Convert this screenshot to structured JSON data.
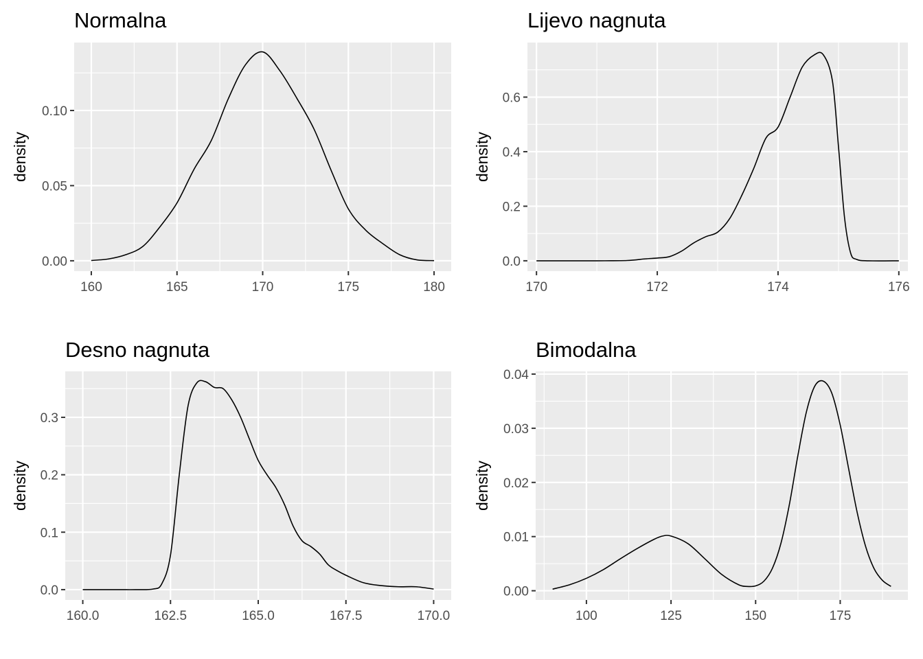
{
  "chart_data": [
    {
      "type": "line",
      "title": "Normalna",
      "xlabel": "",
      "ylabel": "density",
      "xlim": [
        159,
        181
      ],
      "ylim": [
        -0.0069,
        0.1452
      ],
      "xticks": [
        160,
        165,
        170,
        175,
        180
      ],
      "xtick_labels": [
        "160",
        "165",
        "170",
        "175",
        "180"
      ],
      "yticks": [
        0,
        0.05,
        0.1
      ],
      "ytick_labels": [
        "0.00",
        "0.05",
        "0.10"
      ],
      "grid": true,
      "series": [
        {
          "x": [
            160,
            161,
            162,
            163,
            164,
            165,
            166,
            167,
            168,
            169,
            170,
            171,
            172,
            173,
            174,
            175,
            176,
            177,
            178,
            179,
            180
          ],
          "y": [
            0.0002,
            0.0012,
            0.004,
            0.0095,
            0.0225,
            0.0385,
            0.061,
            0.08,
            0.108,
            0.1305,
            0.139,
            0.1265,
            0.108,
            0.0875,
            0.06,
            0.0345,
            0.0205,
            0.0115,
            0.004,
            0.0006,
            0.0001
          ]
        }
      ]
    },
    {
      "type": "line",
      "title": "Lijevo nagnuta",
      "xlabel": "",
      "ylabel": "density",
      "xlim": [
        169.85,
        176.15
      ],
      "ylim": [
        -0.038,
        0.8
      ],
      "xticks": [
        170,
        172,
        174,
        176
      ],
      "xtick_labels": [
        "170",
        "172",
        "174",
        "176"
      ],
      "yticks": [
        0,
        0.2,
        0.4,
        0.6
      ],
      "ytick_labels": [
        "0.0",
        "0.2",
        "0.4",
        "0.6"
      ],
      "grid": true,
      "series": [
        {
          "x": [
            170,
            170.5,
            171,
            171.5,
            171.8,
            172,
            172.2,
            172.4,
            172.6,
            172.8,
            173,
            173.2,
            173.4,
            173.6,
            173.8,
            174,
            174.2,
            174.4,
            174.6,
            174.75,
            174.9,
            175,
            175.1,
            175.2,
            175.3,
            175.5,
            176
          ],
          "y": [
            0,
            0,
            0,
            0.001,
            0.007,
            0.01,
            0.015,
            0.035,
            0.065,
            0.088,
            0.105,
            0.155,
            0.24,
            0.34,
            0.45,
            0.49,
            0.6,
            0.71,
            0.755,
            0.755,
            0.66,
            0.42,
            0.16,
            0.03,
            0.005,
            0,
            0
          ]
        }
      ]
    },
    {
      "type": "line",
      "title": "Desno nagnuta",
      "xlabel": "",
      "ylabel": "density",
      "xlim": [
        159.5,
        170.5
      ],
      "ylim": [
        -0.018,
        0.38
      ],
      "xticks": [
        160,
        162.5,
        165,
        167.5,
        170
      ],
      "xtick_labels": [
        "160.0",
        "162.5",
        "165.0",
        "167.5",
        "170.0"
      ],
      "yticks": [
        0,
        0.1,
        0.2,
        0.3
      ],
      "ytick_labels": [
        "0.0",
        "0.1",
        "0.2",
        "0.3"
      ],
      "grid": true,
      "series": [
        {
          "x": [
            160,
            161,
            161.5,
            162,
            162.25,
            162.5,
            162.75,
            163,
            163.25,
            163.5,
            163.75,
            164,
            164.25,
            164.5,
            164.75,
            165,
            165.25,
            165.5,
            165.75,
            166,
            166.25,
            166.5,
            166.75,
            167,
            167.25,
            167.5,
            168,
            168.5,
            169,
            169.5,
            170
          ],
          "y": [
            0,
            0,
            0,
            0.001,
            0.01,
            0.06,
            0.2,
            0.32,
            0.36,
            0.362,
            0.352,
            0.35,
            0.33,
            0.3,
            0.262,
            0.225,
            0.2,
            0.178,
            0.148,
            0.11,
            0.085,
            0.075,
            0.062,
            0.043,
            0.033,
            0.025,
            0.012,
            0.007,
            0.005,
            0.005,
            0.001
          ]
        }
      ]
    },
    {
      "type": "line",
      "title": "Bimodalna",
      "xlabel": "",
      "ylabel": "density",
      "xlim": [
        85,
        195
      ],
      "ylim": [
        -0.0017,
        0.0405
      ],
      "xticks": [
        100,
        125,
        150,
        175
      ],
      "xtick_labels": [
        "100",
        "125",
        "150",
        "175"
      ],
      "yticks": [
        0,
        0.01,
        0.02,
        0.03,
        0.04
      ],
      "ytick_labels": [
        "0.00",
        "0.01",
        "0.02",
        "0.03",
        "0.04"
      ],
      "grid": true,
      "series": [
        {
          "x": [
            90,
            95,
            100,
            105,
            110,
            115,
            120,
            122.5,
            125,
            130,
            135,
            140,
            145,
            147.5,
            150,
            152.5,
            155,
            157.5,
            160,
            162.5,
            165,
            167.5,
            170,
            172.5,
            175,
            177.5,
            180,
            182.5,
            185,
            187.5,
            190
          ],
          "y": [
            0.0003,
            0.0011,
            0.0023,
            0.0039,
            0.0059,
            0.0078,
            0.0095,
            0.0101,
            0.0101,
            0.0087,
            0.0059,
            0.003,
            0.0011,
            0.0008,
            0.0009,
            0.0018,
            0.0042,
            0.0088,
            0.016,
            0.025,
            0.033,
            0.0378,
            0.0387,
            0.0365,
            0.0306,
            0.0225,
            0.0145,
            0.0082,
            0.0041,
            0.0019,
            0.0008
          ]
        }
      ]
    }
  ]
}
